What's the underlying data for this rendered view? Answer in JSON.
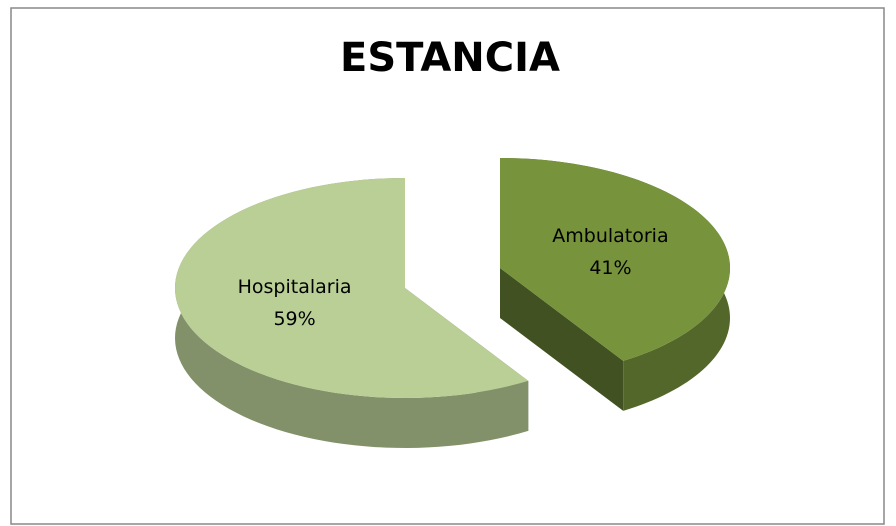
{
  "chart_data": {
    "type": "pie3d",
    "title": "ESTANCIA",
    "categories": [
      "Ambulatoria",
      "Hospitalaria"
    ],
    "values": [
      41,
      59
    ],
    "value_labels": [
      "41%",
      "59%"
    ],
    "colors": [
      "#77933c",
      "#b9cf96"
    ]
  }
}
